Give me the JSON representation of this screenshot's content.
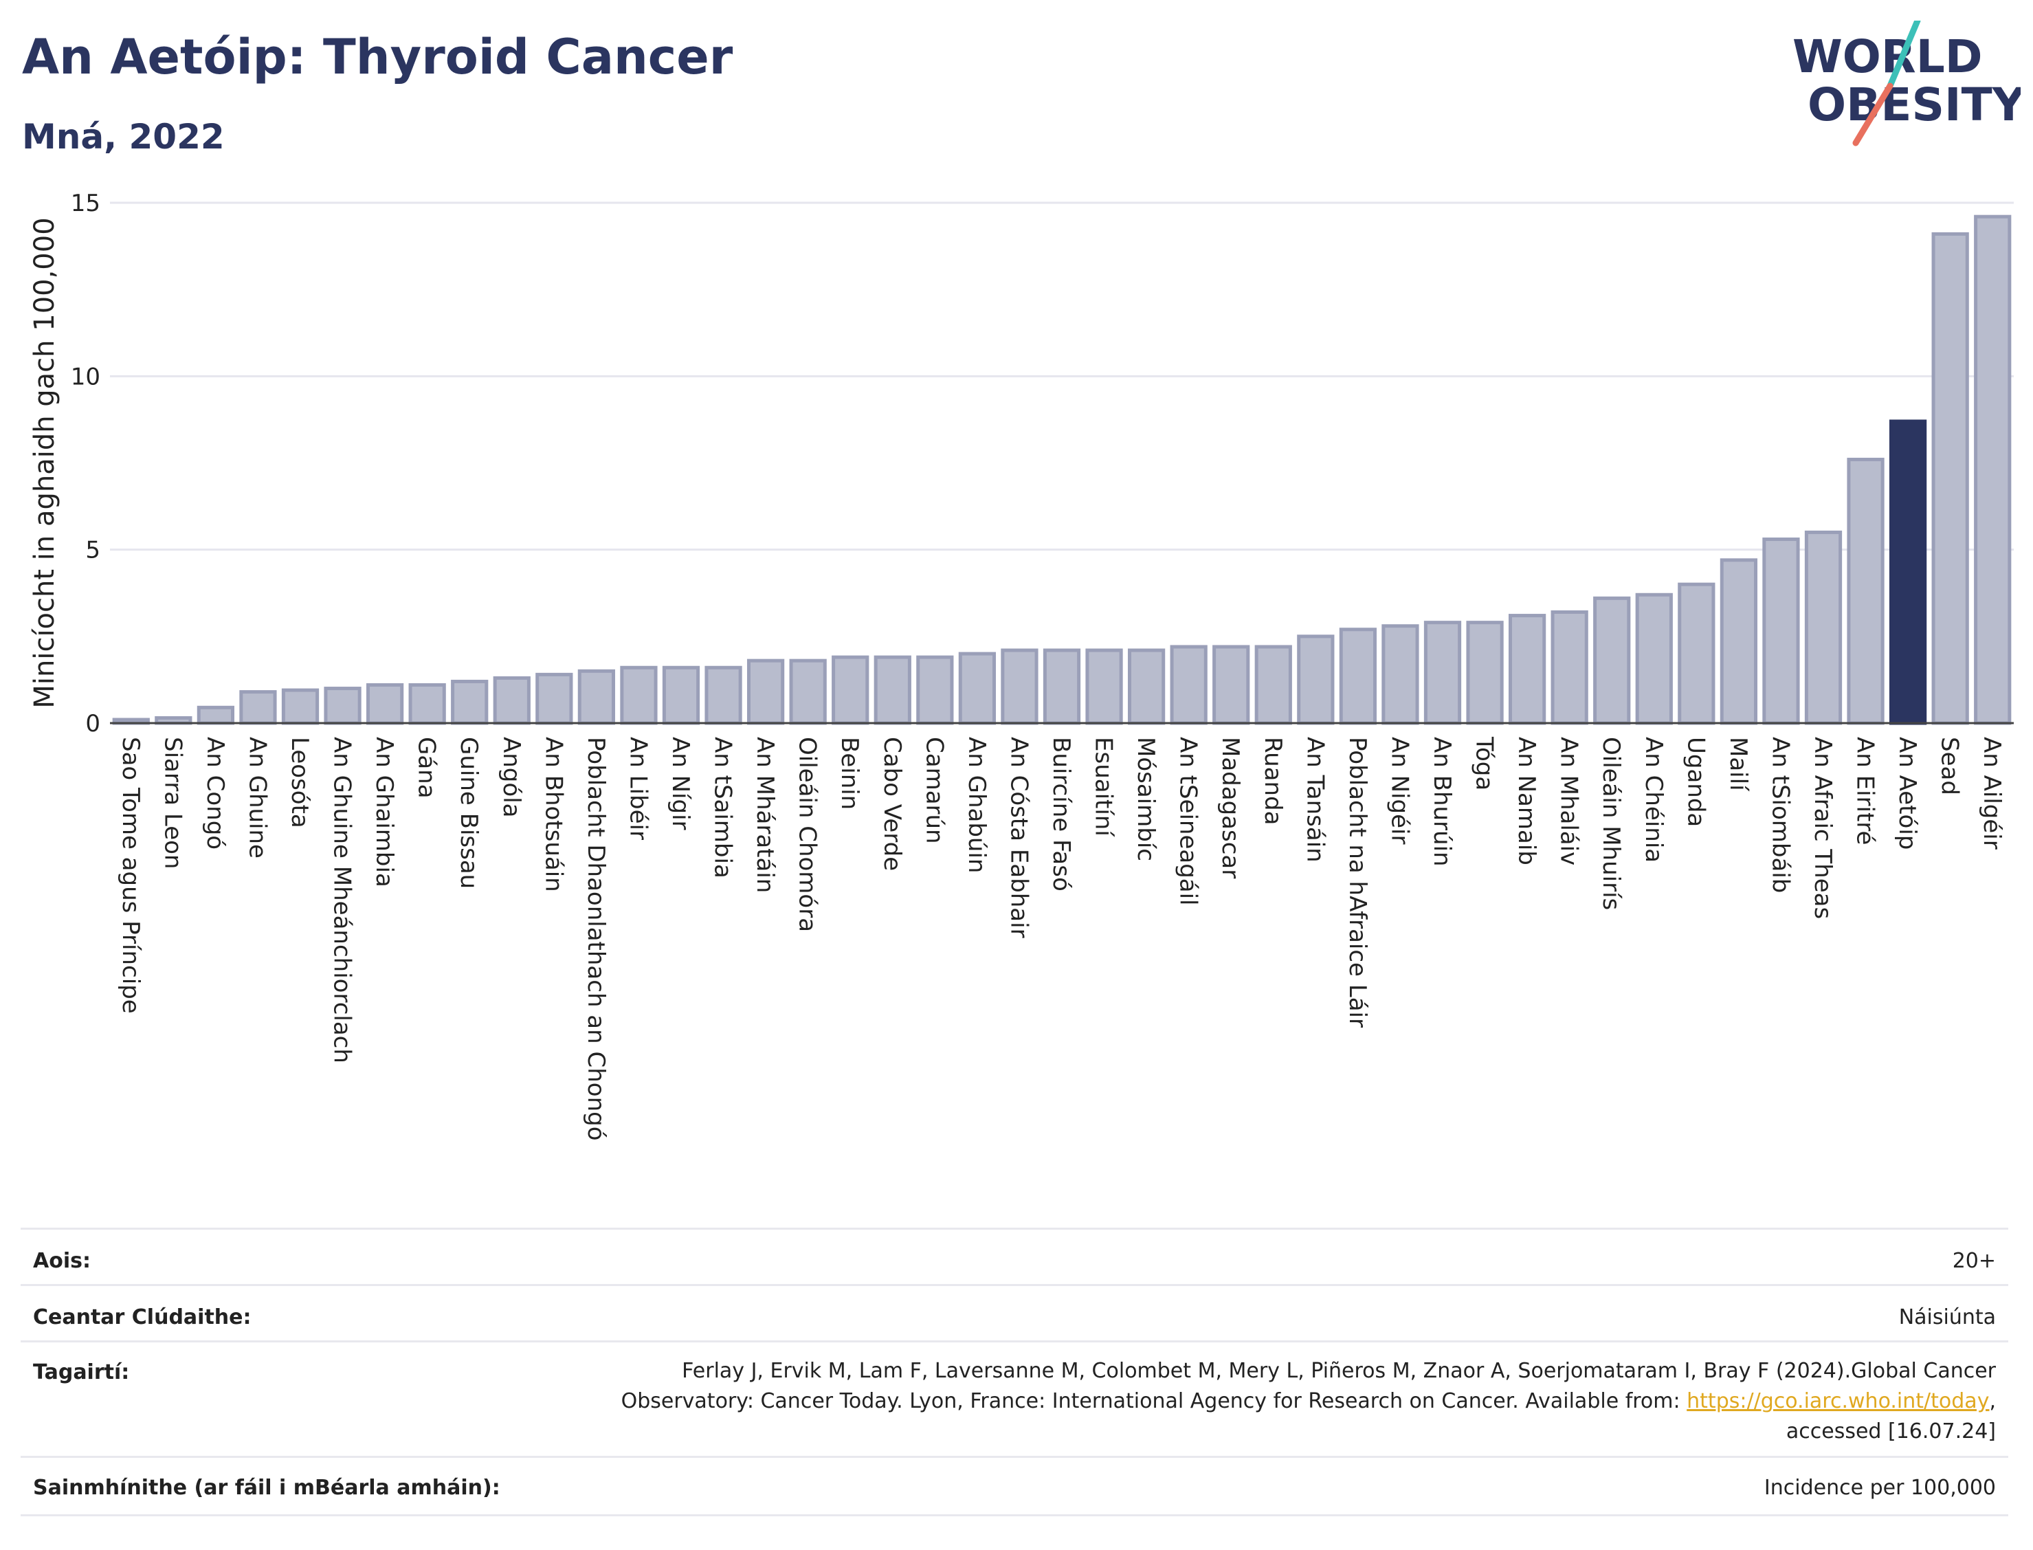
{
  "header": {
    "title": "An Aetóip: Thyroid Cancer",
    "subtitle": "Mná, 2022",
    "logo_line1": "WORLD",
    "logo_line2": "OBESITY"
  },
  "colors": {
    "bar": "#b8bccd",
    "bar_stroke": "#9a9fb8",
    "highlight": "#2b3560",
    "grid": "#e6e6ee",
    "logo_navy": "#2b3560",
    "logo_teal": "#3cc0b8",
    "logo_coral": "#e8705e"
  },
  "chart_data": {
    "type": "bar",
    "title": "An Aetóip: Thyroid Cancer",
    "subtitle": "Mná, 2022",
    "ylabel": "Minicíocht in aghaidh gach 100,000",
    "xlabel": "",
    "ylim": [
      0,
      15
    ],
    "yticks": [
      0,
      5,
      10,
      15
    ],
    "grid": true,
    "highlight": "An Aetóip",
    "categories": [
      "Sao Tome agus Príncipe",
      "Siarra Leon",
      "An Congó",
      "An Ghuine",
      "Leosóta",
      "An Ghuine Mheánchiorclach",
      "An Ghaimbia",
      "Gána",
      "Guine Bissau",
      "Angóla",
      "An Bhotsuáin",
      "Poblacht Dhaonlathach an Chongó",
      "An Libéir",
      "An Nígir",
      "An tSaimbia",
      "An Mháratáin",
      "Oileáin Chomóra",
      "Beinin",
      "Cabo Verde",
      "Camarún",
      "An Ghabúin",
      "An Cósta Eabhair",
      "Buircíne Fasó",
      "Esuaitíní",
      "Mósaimbíc",
      "An tSeineagáil",
      "Madagascar",
      "Ruanda",
      "An Tansáin",
      "Poblacht na hAfraice Láir",
      "An Nigéir",
      "An Bhurúin",
      "Tóga",
      "An Namaib",
      "An Mhaláiv",
      "Oileáin Mhuirís",
      "An Chéinia",
      "Uganda",
      "Mailí",
      "An tSiombáib",
      "An Afraic Theas",
      "An Eiritré",
      "An Aetóip",
      "Sead",
      "An Ailgéir"
    ],
    "values": [
      0.1,
      0.15,
      0.45,
      0.9,
      0.95,
      1.0,
      1.1,
      1.1,
      1.2,
      1.3,
      1.4,
      1.5,
      1.6,
      1.6,
      1.6,
      1.8,
      1.8,
      1.9,
      1.9,
      1.9,
      2.0,
      2.1,
      2.1,
      2.1,
      2.1,
      2.2,
      2.2,
      2.2,
      2.5,
      2.7,
      2.8,
      2.9,
      2.9,
      3.1,
      3.2,
      3.6,
      3.7,
      4.0,
      4.7,
      5.3,
      5.5,
      7.6,
      8.7,
      14.1,
      14.6
    ]
  },
  "meta": {
    "age_label": "Aois:",
    "age_value": "20+",
    "area_label": "Ceantar Clúdaithe:",
    "area_value": "Náisiúnta",
    "ref_label": "Tagairtí:",
    "ref_line1": "Ferlay J, Ervik M, Lam F, Laversanne M, Colombet M, Mery L, Piñeros M, Znaor A, Soerjomataram I, Bray F (2024).Global Cancer",
    "ref_line2_pre": "Observatory: Cancer Today. Lyon, France: International Agency for Research on Cancer. Available from: ",
    "ref_link": "https://gco.iarc.who.int/today",
    "ref_line2_post": ",",
    "ref_line3": "accessed [16.07.24]",
    "def_label": "Sainmhínithe (ar fáil i mBéarla amháin):",
    "def_value": "Incidence per 100,000"
  }
}
